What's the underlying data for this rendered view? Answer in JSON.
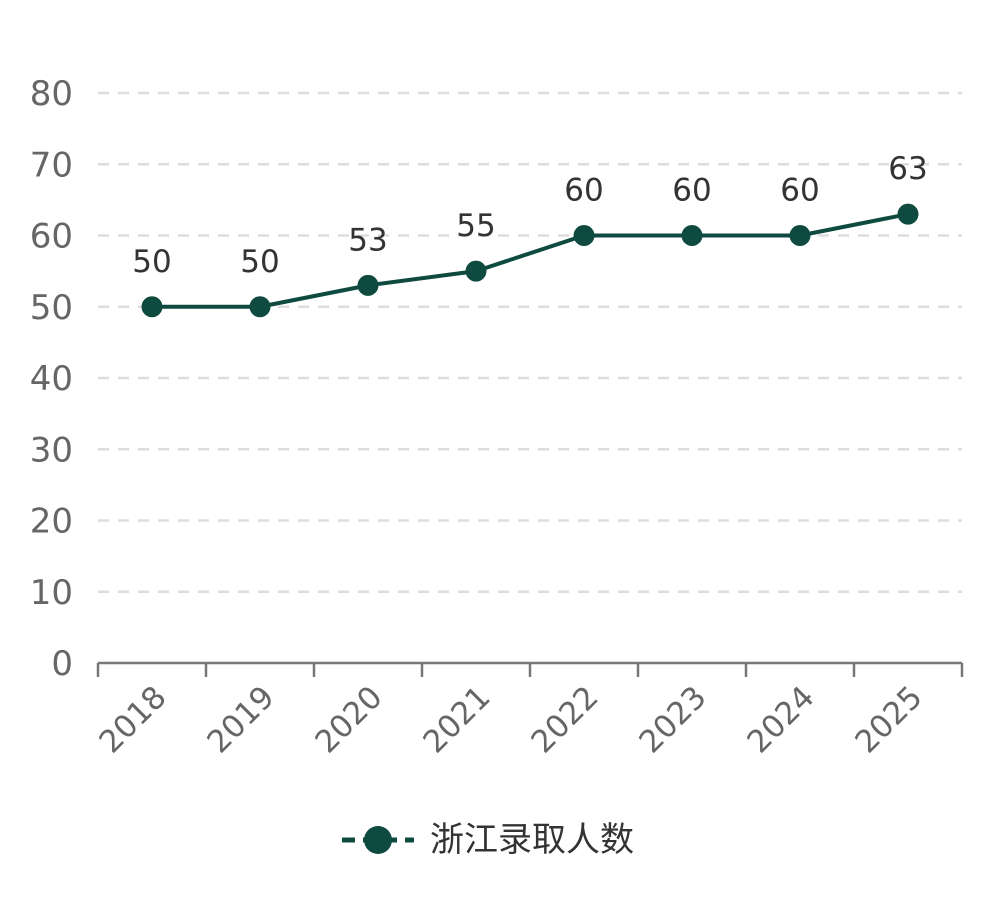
{
  "chart_data": {
    "type": "line",
    "categories": [
      "2018",
      "2019",
      "2020",
      "2021",
      "2022",
      "2023",
      "2024",
      "2025"
    ],
    "series": [
      {
        "name": "浙江录取人数",
        "values": [
          50,
          50,
          53,
          55,
          60,
          60,
          60,
          63
        ],
        "color": "#0e4a40"
      }
    ],
    "ylim": [
      0,
      80
    ],
    "yticks": [
      0,
      10,
      20,
      30,
      40,
      50,
      60,
      70,
      80
    ],
    "grid": true,
    "legend_position": "bottom",
    "data_labels": true
  },
  "colors": {
    "series": "#0e4a40",
    "grid": "#dddddd",
    "axis": "#777777",
    "tick_text": "#666666",
    "label_text": "#333333"
  }
}
